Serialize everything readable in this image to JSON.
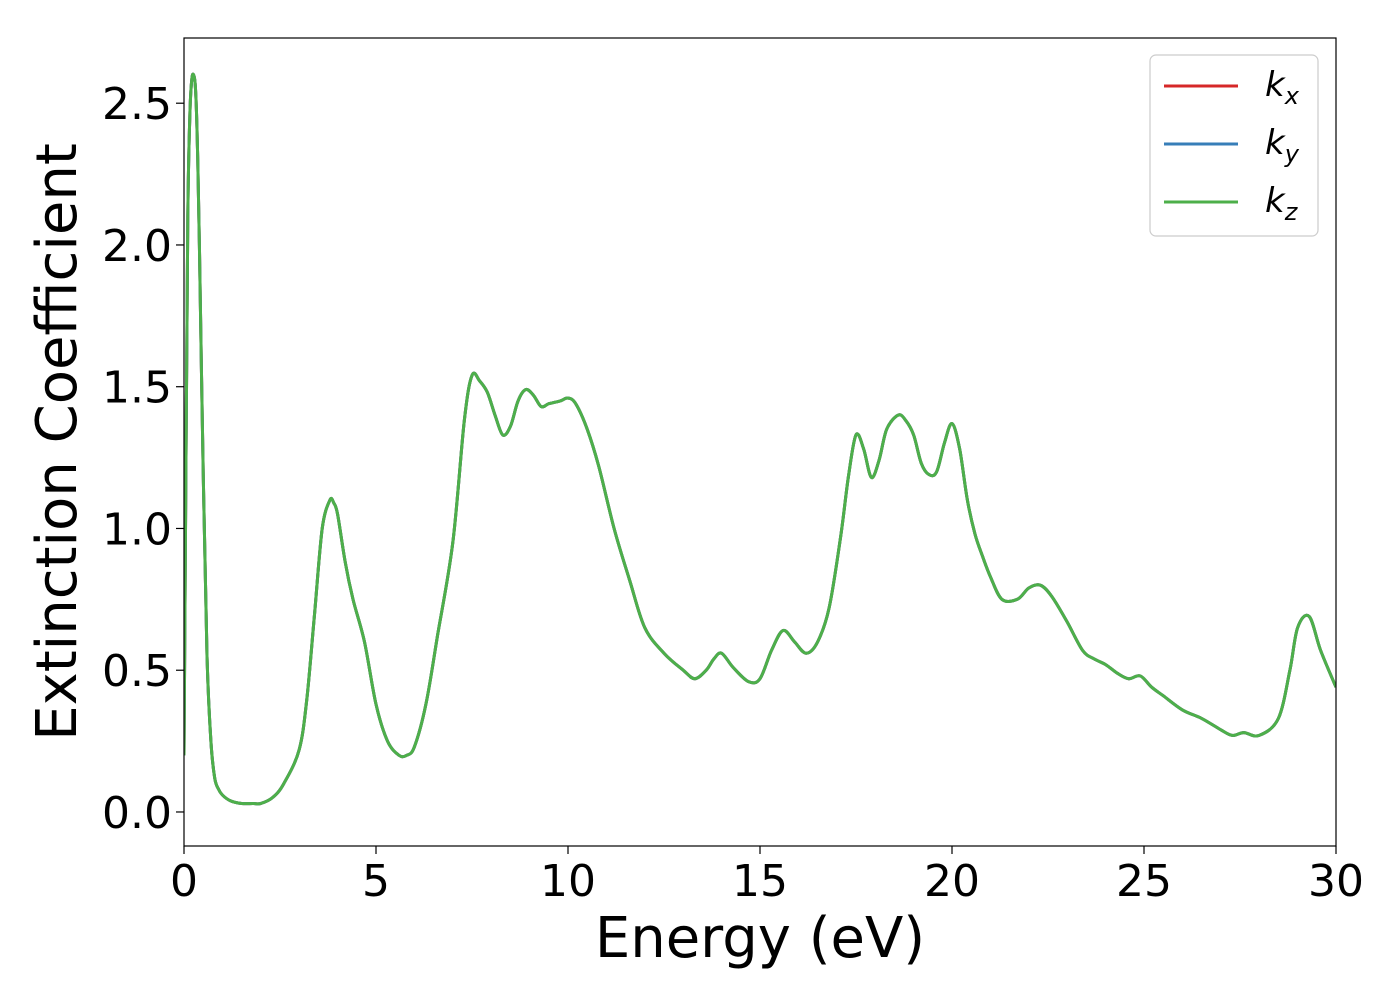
{
  "chart_data": {
    "type": "line",
    "xlabel": "Energy (eV)",
    "ylabel": "Extinction Coefficient",
    "xlim": [
      0,
      30
    ],
    "ylim": [
      -0.12,
      2.73
    ],
    "xticks": [
      0,
      5,
      10,
      15,
      20,
      25,
      30
    ],
    "xtick_labels": [
      "0",
      "5",
      "10",
      "15",
      "20",
      "25",
      "30"
    ],
    "yticks": [
      0.0,
      0.5,
      1.0,
      1.5,
      2.0,
      2.5
    ],
    "ytick_labels": [
      "0.0",
      "0.5",
      "1.0",
      "1.5",
      "2.0",
      "2.5"
    ],
    "grid": false,
    "legend_position": "top-right",
    "x": [
      0,
      0.05,
      0.1,
      0.15,
      0.2,
      0.25,
      0.3,
      0.35,
      0.4,
      0.5,
      0.6,
      0.7,
      0.8,
      0.9,
      1.0,
      1.2,
      1.5,
      1.8,
      2.0,
      2.3,
      2.6,
      3.0,
      3.2,
      3.4,
      3.6,
      3.8,
      3.9,
      4.0,
      4.2,
      4.4,
      4.7,
      5.0,
      5.3,
      5.6,
      5.8,
      6.0,
      6.3,
      6.6,
      7.0,
      7.3,
      7.5,
      7.7,
      7.9,
      8.1,
      8.3,
      8.5,
      8.7,
      8.9,
      9.1,
      9.3,
      9.5,
      9.8,
      10.0,
      10.2,
      10.5,
      10.8,
      11.2,
      11.6,
      12.0,
      12.5,
      13.0,
      13.3,
      13.6,
      13.8,
      14.0,
      14.3,
      14.7,
      15.0,
      15.3,
      15.6,
      15.9,
      16.2,
      16.5,
      16.8,
      17.1,
      17.3,
      17.5,
      17.7,
      17.9,
      18.1,
      18.3,
      18.6,
      18.8,
      19.0,
      19.2,
      19.4,
      19.6,
      19.8,
      20.0,
      20.2,
      20.4,
      20.6,
      20.8,
      21.0,
      21.3,
      21.7,
      22.0,
      22.3,
      22.6,
      23.0,
      23.4,
      23.7,
      24.0,
      24.3,
      24.6,
      24.9,
      25.2,
      25.5,
      26.0,
      26.5,
      27.0,
      27.3,
      27.6,
      28.0,
      28.5,
      28.8,
      29.0,
      29.3,
      29.6,
      30.0
    ],
    "series": [
      {
        "name": "k_x",
        "color": "#d62728",
        "values": [
          0.2,
          1.2,
          2.1,
          2.45,
          2.58,
          2.6,
          2.55,
          2.35,
          2.0,
          1.2,
          0.55,
          0.25,
          0.12,
          0.08,
          0.06,
          0.04,
          0.03,
          0.03,
          0.03,
          0.05,
          0.1,
          0.22,
          0.4,
          0.7,
          1.0,
          1.1,
          1.09,
          1.05,
          0.88,
          0.75,
          0.6,
          0.38,
          0.25,
          0.2,
          0.2,
          0.23,
          0.38,
          0.62,
          0.95,
          1.38,
          1.54,
          1.52,
          1.48,
          1.4,
          1.33,
          1.36,
          1.45,
          1.49,
          1.47,
          1.43,
          1.44,
          1.45,
          1.46,
          1.44,
          1.35,
          1.22,
          1.0,
          0.82,
          0.65,
          0.56,
          0.5,
          0.47,
          0.5,
          0.54,
          0.56,
          0.51,
          0.46,
          0.47,
          0.57,
          0.64,
          0.6,
          0.56,
          0.6,
          0.72,
          0.97,
          1.18,
          1.33,
          1.28,
          1.18,
          1.24,
          1.35,
          1.4,
          1.38,
          1.33,
          1.23,
          1.19,
          1.2,
          1.3,
          1.37,
          1.28,
          1.1,
          0.98,
          0.9,
          0.83,
          0.75,
          0.75,
          0.79,
          0.8,
          0.76,
          0.67,
          0.57,
          0.54,
          0.52,
          0.49,
          0.47,
          0.48,
          0.44,
          0.41,
          0.36,
          0.33,
          0.29,
          0.27,
          0.28,
          0.27,
          0.33,
          0.5,
          0.65,
          0.69,
          0.57,
          0.44
        ]
      },
      {
        "name": "k_y",
        "color": "#377eb8",
        "values": [
          0.2,
          1.2,
          2.1,
          2.45,
          2.58,
          2.6,
          2.55,
          2.35,
          2.0,
          1.2,
          0.55,
          0.25,
          0.12,
          0.08,
          0.06,
          0.04,
          0.03,
          0.03,
          0.03,
          0.05,
          0.1,
          0.22,
          0.4,
          0.7,
          1.0,
          1.1,
          1.09,
          1.05,
          0.88,
          0.75,
          0.6,
          0.38,
          0.25,
          0.2,
          0.2,
          0.23,
          0.38,
          0.62,
          0.95,
          1.38,
          1.54,
          1.52,
          1.48,
          1.4,
          1.33,
          1.36,
          1.45,
          1.49,
          1.47,
          1.43,
          1.44,
          1.45,
          1.46,
          1.44,
          1.35,
          1.22,
          1.0,
          0.82,
          0.65,
          0.56,
          0.5,
          0.47,
          0.5,
          0.54,
          0.56,
          0.51,
          0.46,
          0.47,
          0.57,
          0.64,
          0.6,
          0.56,
          0.6,
          0.72,
          0.97,
          1.18,
          1.33,
          1.28,
          1.18,
          1.24,
          1.35,
          1.4,
          1.38,
          1.33,
          1.23,
          1.19,
          1.2,
          1.3,
          1.37,
          1.28,
          1.1,
          0.98,
          0.9,
          0.83,
          0.75,
          0.75,
          0.79,
          0.8,
          0.76,
          0.67,
          0.57,
          0.54,
          0.52,
          0.49,
          0.47,
          0.48,
          0.44,
          0.41,
          0.36,
          0.33,
          0.29,
          0.27,
          0.28,
          0.27,
          0.33,
          0.5,
          0.65,
          0.69,
          0.57,
          0.44
        ]
      },
      {
        "name": "k_z",
        "color": "#4daf4a",
        "values": [
          0.2,
          1.2,
          2.1,
          2.45,
          2.58,
          2.6,
          2.55,
          2.35,
          2.0,
          1.2,
          0.55,
          0.25,
          0.12,
          0.08,
          0.06,
          0.04,
          0.03,
          0.03,
          0.03,
          0.05,
          0.1,
          0.22,
          0.4,
          0.7,
          1.0,
          1.1,
          1.09,
          1.05,
          0.88,
          0.75,
          0.6,
          0.38,
          0.25,
          0.2,
          0.2,
          0.23,
          0.38,
          0.62,
          0.95,
          1.38,
          1.54,
          1.52,
          1.48,
          1.4,
          1.33,
          1.36,
          1.45,
          1.49,
          1.47,
          1.43,
          1.44,
          1.45,
          1.46,
          1.44,
          1.35,
          1.22,
          1.0,
          0.82,
          0.65,
          0.56,
          0.5,
          0.47,
          0.5,
          0.54,
          0.56,
          0.51,
          0.46,
          0.47,
          0.57,
          0.64,
          0.6,
          0.56,
          0.6,
          0.72,
          0.97,
          1.18,
          1.33,
          1.28,
          1.18,
          1.24,
          1.35,
          1.4,
          1.38,
          1.33,
          1.23,
          1.19,
          1.2,
          1.3,
          1.37,
          1.28,
          1.1,
          0.98,
          0.9,
          0.83,
          0.75,
          0.75,
          0.79,
          0.8,
          0.76,
          0.67,
          0.57,
          0.54,
          0.52,
          0.49,
          0.47,
          0.48,
          0.44,
          0.41,
          0.36,
          0.33,
          0.29,
          0.27,
          0.28,
          0.27,
          0.33,
          0.5,
          0.65,
          0.69,
          0.57,
          0.44
        ]
      }
    ],
    "legend": [
      {
        "base": "k",
        "sub": "x",
        "color": "#d62728"
      },
      {
        "base": "k",
        "sub": "y",
        "color": "#377eb8"
      },
      {
        "base": "k",
        "sub": "z",
        "color": "#4daf4a"
      }
    ]
  }
}
